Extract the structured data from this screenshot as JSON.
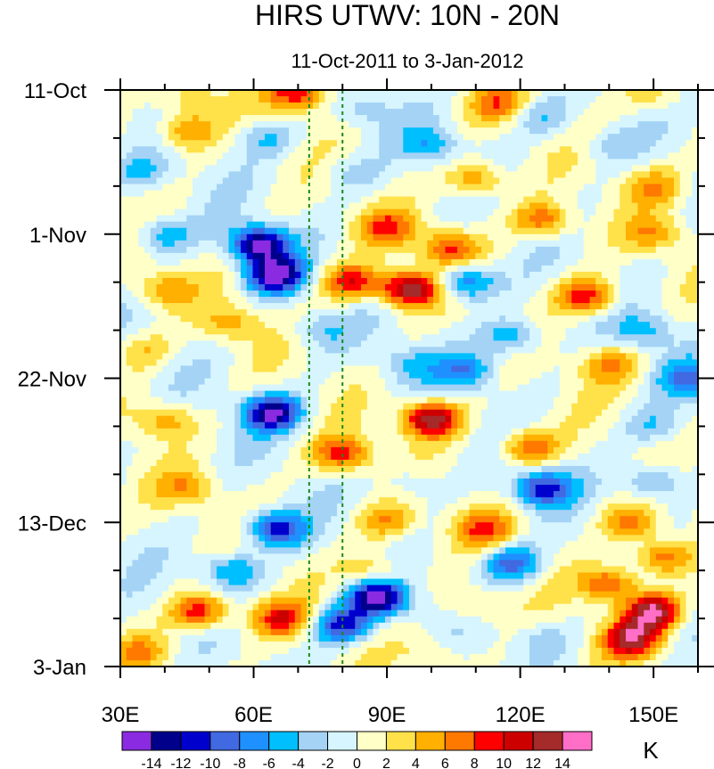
{
  "chart_data": {
    "type": "heatmap",
    "title": "HIRS UTWV: 10N - 20N",
    "subtitle": "11-Oct-2011 to 3-Jan-2012",
    "x_axis": {
      "range": [
        30,
        160
      ],
      "tick_values": [
        30,
        60,
        90,
        120,
        150
      ],
      "tick_labels": [
        "30E",
        "60E",
        "90E",
        "120E",
        "150E"
      ],
      "minor_step": 10
    },
    "y_axis": {
      "range_days": [
        0,
        84
      ],
      "direction": "time increases downward",
      "tick_values": [
        0,
        21,
        42,
        63,
        84
      ],
      "tick_labels": [
        "11-Oct",
        "1-Nov",
        "22-Nov",
        "13-Dec",
        "3-Jan"
      ],
      "minor_step": 7
    },
    "reference_lines": [
      {
        "x": 72.5,
        "style": "dashed",
        "color": "#1a8a1a"
      },
      {
        "x": 80,
        "style": "dashed",
        "color": "#1a8a1a"
      }
    ],
    "colorbar": {
      "units": "K",
      "levels": [
        -14,
        -12,
        -10,
        -8,
        -6,
        -4,
        -2,
        0,
        2,
        4,
        6,
        8,
        10,
        12,
        14
      ],
      "level_labels": [
        "-14",
        "-12",
        "-10",
        "-8",
        "-6",
        "-4",
        "-2",
        "0",
        "2",
        "4",
        "6",
        "8",
        "10",
        "12",
        "14"
      ],
      "colors": [
        "#8a2be2",
        "#00008b",
        "#0000cd",
        "#4169e1",
        "#1e90ff",
        "#00bfff",
        "#a4d3f5",
        "#d6f5ff",
        "#ffffc8",
        "#ffe14a",
        "#ffb000",
        "#ff7800",
        "#ff0000",
        "#cd0000",
        "#a52a2a",
        "#ff6ec7"
      ]
    },
    "anomaly_features": [
      {
        "lon": 46,
        "day": 1.5,
        "value": 4
      },
      {
        "lon": 70,
        "day": 0.5,
        "value": 10
      },
      {
        "lon": 115,
        "day": 2,
        "value": 6
      },
      {
        "lon": 150,
        "day": 1,
        "value": 4
      },
      {
        "lon": 85,
        "day": 3,
        "value": -3
      },
      {
        "lon": 125,
        "day": 4,
        "value": -4
      },
      {
        "lon": 45,
        "day": 6,
        "value": 7
      },
      {
        "lon": 100,
        "day": 8,
        "value": -5
      },
      {
        "lon": 140,
        "day": 8,
        "value": -3
      },
      {
        "lon": 35,
        "day": 12,
        "value": -4
      },
      {
        "lon": 63,
        "day": 7,
        "value": -4
      },
      {
        "lon": 82,
        "day": 12,
        "value": -3
      },
      {
        "lon": 110,
        "day": 13,
        "value": 7
      },
      {
        "lon": 150,
        "day": 14,
        "value": 5
      },
      {
        "lon": 61,
        "day": 22.5,
        "value": -15
      },
      {
        "lon": 65,
        "day": 27,
        "value": -15
      },
      {
        "lon": 40,
        "day": 21,
        "value": -6
      },
      {
        "lon": 90,
        "day": 20,
        "value": 7
      },
      {
        "lon": 104,
        "day": 23,
        "value": 8
      },
      {
        "lon": 125,
        "day": 19,
        "value": 8
      },
      {
        "lon": 150,
        "day": 21,
        "value": 5
      },
      {
        "lon": 95,
        "day": 29,
        "value": 14
      },
      {
        "lon": 82,
        "day": 28,
        "value": 10
      },
      {
        "lon": 108,
        "day": 28,
        "value": -9
      },
      {
        "lon": 135,
        "day": 30,
        "value": 10
      },
      {
        "lon": 40,
        "day": 29,
        "value": 6
      },
      {
        "lon": 55,
        "day": 34,
        "value": 5
      },
      {
        "lon": 75,
        "day": 35,
        "value": -4
      },
      {
        "lon": 118,
        "day": 36,
        "value": -7
      },
      {
        "lon": 148,
        "day": 35,
        "value": -5
      },
      {
        "lon": 35,
        "day": 38,
        "value": 4
      },
      {
        "lon": 95,
        "day": 40,
        "value": -4
      },
      {
        "lon": 108,
        "day": 41,
        "value": -7
      },
      {
        "lon": 140,
        "day": 40,
        "value": 6
      },
      {
        "lon": 158,
        "day": 42,
        "value": -7
      },
      {
        "lon": 64,
        "day": 47,
        "value": -14
      },
      {
        "lon": 100,
        "day": 48,
        "value": 14
      },
      {
        "lon": 40,
        "day": 48,
        "value": 6
      },
      {
        "lon": 80,
        "day": 53,
        "value": 9
      },
      {
        "lon": 122,
        "day": 52,
        "value": 8
      },
      {
        "lon": 150,
        "day": 49,
        "value": -4
      },
      {
        "lon": 45,
        "day": 58,
        "value": 5
      },
      {
        "lon": 95,
        "day": 57,
        "value": -3
      },
      {
        "lon": 125,
        "day": 58,
        "value": -11
      },
      {
        "lon": 150,
        "day": 57,
        "value": -6
      },
      {
        "lon": 65,
        "day": 64,
        "value": -11
      },
      {
        "lon": 90,
        "day": 63,
        "value": 6
      },
      {
        "lon": 112,
        "day": 64,
        "value": 7
      },
      {
        "lon": 145,
        "day": 63,
        "value": 7
      },
      {
        "lon": 55,
        "day": 70,
        "value": -7
      },
      {
        "lon": 87,
        "day": 70,
        "value": 5
      },
      {
        "lon": 118,
        "day": 69,
        "value": -9
      },
      {
        "lon": 152,
        "day": 68,
        "value": 8
      },
      {
        "lon": 88,
        "day": 74,
        "value": -15
      },
      {
        "lon": 80,
        "day": 78,
        "value": -11
      },
      {
        "lon": 48,
        "day": 76,
        "value": 10
      },
      {
        "lon": 66,
        "day": 77,
        "value": 9
      },
      {
        "lon": 110,
        "day": 75,
        "value": 4
      },
      {
        "lon": 140,
        "day": 72,
        "value": 9
      },
      {
        "lon": 150,
        "day": 76,
        "value": 14
      },
      {
        "lon": 145,
        "day": 80,
        "value": 12
      },
      {
        "lon": 35,
        "day": 82,
        "value": 5
      },
      {
        "lon": 100,
        "day": 82,
        "value": 3
      },
      {
        "lon": 125,
        "day": 80,
        "value": -3
      }
    ]
  }
}
